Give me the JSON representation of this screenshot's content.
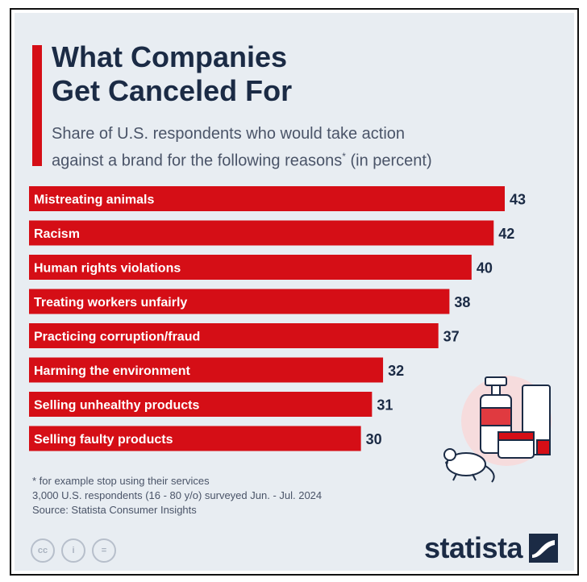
{
  "header": {
    "title_line1": "What Companies",
    "title_line2": "Get Canceled For",
    "subtitle_line1": "Share of U.S. respondents who would take action",
    "subtitle_line2": "against a brand for the following reasons",
    "subtitle_asterisk": "*",
    "subtitle_unit": " (in percent)"
  },
  "colors": {
    "accent": "#d50e16",
    "title": "#1b2b45",
    "background": "#e8edf2"
  },
  "chart_data": {
    "type": "bar",
    "orientation": "horizontal",
    "title": "What Companies Get Canceled For",
    "subtitle": "Share of U.S. respondents who would take action against a brand for the following reasons* (in percent)",
    "xlabel": "",
    "ylabel": "",
    "xlim": [
      0,
      43
    ],
    "grid": false,
    "legend": "none",
    "categories": [
      "Mistreating animals",
      "Racism",
      "Human rights violations",
      "Treating workers unfairly",
      "Practicing corruption/fraud",
      "Harming the environment",
      "Selling unhealthy products",
      "Selling faulty products"
    ],
    "values": [
      43,
      42,
      40,
      38,
      37,
      32,
      31,
      30
    ]
  },
  "footnotes": {
    "note": "* for example stop using their services",
    "sample": "3,000 U.S. respondents (16 - 80 y/o) surveyed Jun. - Jul. 2024",
    "source": "Source: Statista Consumer Insights"
  },
  "license_icons": [
    {
      "icon": "creative-commons-icon",
      "glyph": "cc"
    },
    {
      "icon": "attribution-icon",
      "glyph": "i"
    },
    {
      "icon": "no-derivatives-icon",
      "glyph": "="
    }
  ],
  "brand": {
    "name": "statista",
    "icon": "statista-logo-icon"
  },
  "illustration": {
    "icon": "cosmetics-and-mouse-icon"
  }
}
